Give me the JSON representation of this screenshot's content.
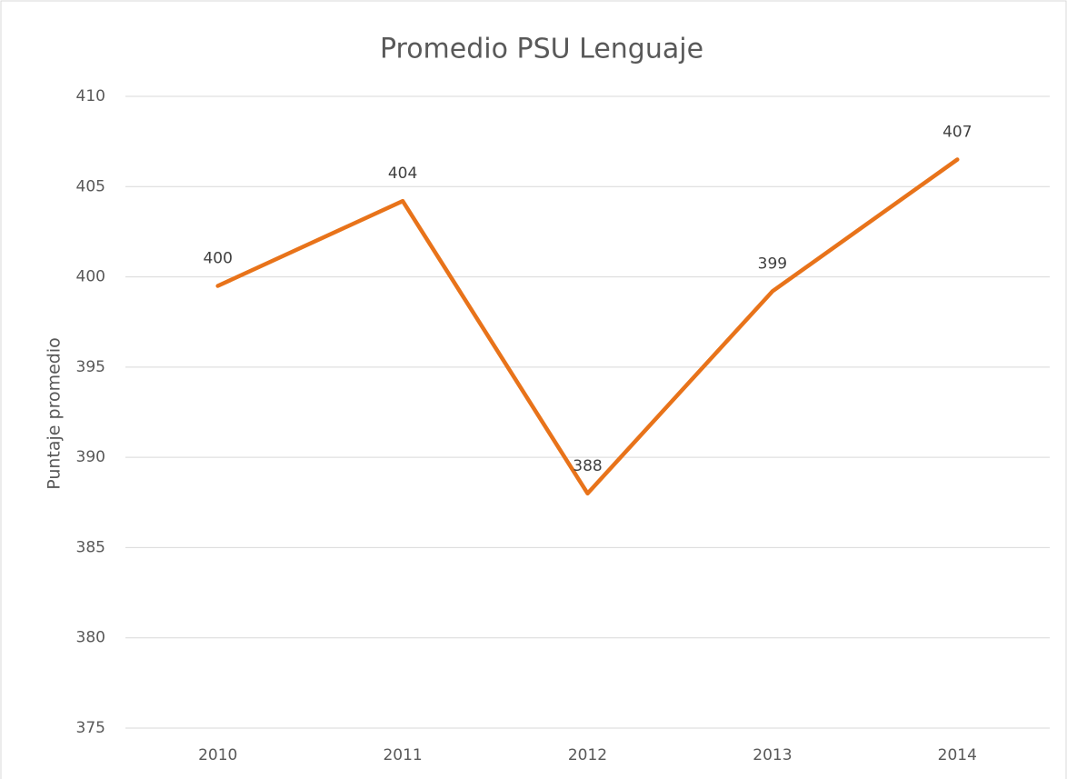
{
  "chart_data": {
    "type": "line",
    "title": "Promedio PSU Lenguaje",
    "y_label": "Puntaje promedio",
    "categories": [
      "2010",
      "2011",
      "2012",
      "2013",
      "2014"
    ],
    "values": [
      399.5,
      404.2,
      388.0,
      399.2,
      406.5
    ],
    "value_labels": [
      "400",
      "404",
      "388",
      "399",
      "407"
    ],
    "color": "#e8731a",
    "ylim": [
      375,
      410
    ],
    "yticks": [
      375,
      380,
      385,
      390,
      395,
      400,
      405,
      410
    ],
    "grid": true
  }
}
